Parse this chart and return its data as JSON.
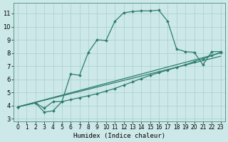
{
  "bg_color": "#cce8e8",
  "line_color": "#2d7d6e",
  "grid_color": "#aacece",
  "xlabel": "Humidex (Indice chaleur)",
  "xlim": [
    -0.5,
    23.5
  ],
  "ylim": [
    2.8,
    11.8
  ],
  "xticks": [
    0,
    1,
    2,
    3,
    4,
    5,
    6,
    7,
    8,
    9,
    10,
    11,
    12,
    13,
    14,
    15,
    16,
    17,
    18,
    19,
    20,
    21,
    22,
    23
  ],
  "yticks": [
    3,
    4,
    5,
    6,
    7,
    8,
    9,
    10,
    11
  ],
  "series_main_x": [
    0,
    2,
    3,
    4,
    5,
    6,
    7,
    8,
    9,
    10,
    11,
    12,
    13,
    14,
    15,
    16,
    17,
    18,
    19,
    20,
    21,
    22,
    23
  ],
  "series_main_y": [
    3.9,
    4.2,
    3.8,
    4.3,
    4.3,
    6.4,
    6.3,
    8.05,
    9.0,
    8.95,
    10.4,
    11.05,
    11.15,
    11.2,
    11.2,
    11.25,
    10.4,
    8.3,
    8.1,
    8.05,
    7.1,
    8.1,
    8.1
  ],
  "series_lin_x": [
    0,
    2,
    3,
    4,
    5,
    6,
    7,
    8,
    9,
    10,
    11,
    12,
    13,
    14,
    15,
    16,
    17,
    18,
    19,
    20,
    21,
    22,
    23
  ],
  "series_lin_y": [
    3.9,
    4.2,
    3.5,
    3.6,
    4.3,
    4.45,
    4.6,
    4.75,
    4.9,
    5.1,
    5.3,
    5.55,
    5.8,
    6.05,
    6.3,
    6.5,
    6.7,
    6.9,
    7.1,
    7.35,
    7.55,
    7.8,
    8.05
  ],
  "line2_x": [
    0,
    23
  ],
  "line2_y": [
    3.9,
    8.0
  ],
  "line3_x": [
    0,
    23
  ],
  "line3_y": [
    3.9,
    7.75
  ]
}
